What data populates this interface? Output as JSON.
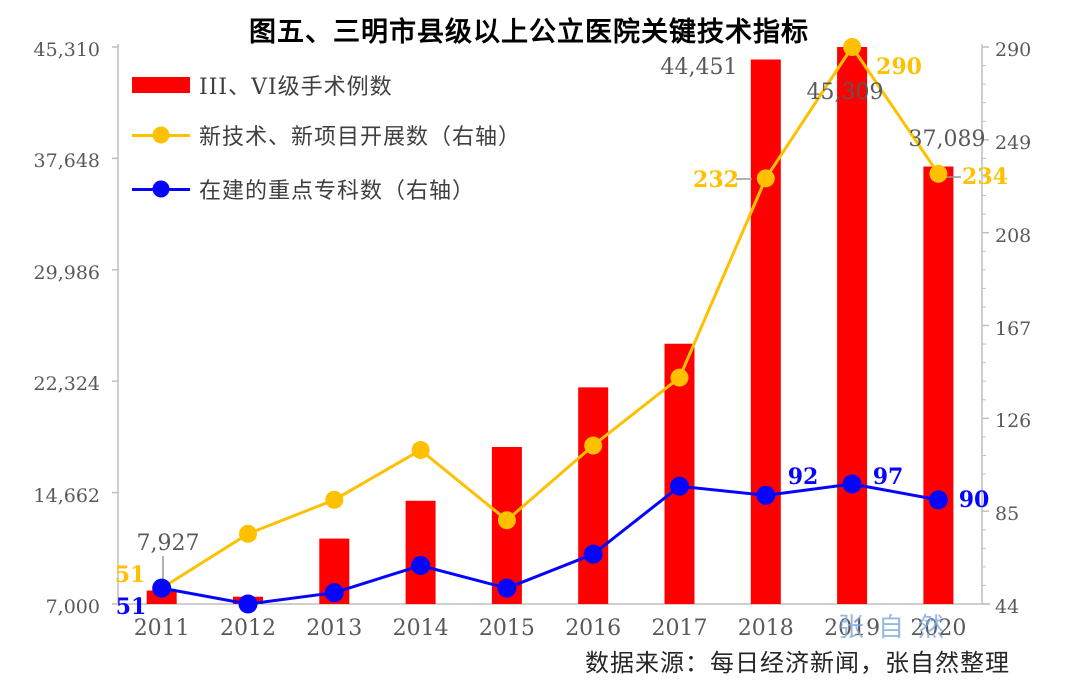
{
  "title": "图五、三明市县级以上公立医院关键技术指标",
  "source": "数据来源：每日经济新闻，张自然整理",
  "watermark": "张自然",
  "colors": {
    "bar_red": "#ff0000",
    "line_gold": "#ffc000",
    "line_blue": "#0505ff",
    "axis_gray": "#bfbfbf",
    "label_gray": "#595959",
    "leader_gray": "#999999",
    "watermark_blue": "#7fa8dc"
  },
  "legend": [
    {
      "label": "III、VI级手术例数",
      "marker": "bar",
      "color": "#ff0000"
    },
    {
      "label": "新技术、新项目开展数（右轴）",
      "marker": "line-dot",
      "color": "#ffc000"
    },
    {
      "label": "在建的重点专科数（右轴）",
      "marker": "line-dot",
      "color": "#0505ff"
    }
  ],
  "chart_data": {
    "type": "combo",
    "categories": [
      "2011",
      "2012",
      "2013",
      "2014",
      "2015",
      "2016",
      "2017",
      "2018",
      "2019",
      "2020"
    ],
    "series": [
      {
        "name": "III、VI级手术例数",
        "key": "surgeries",
        "type": "bar",
        "axis": "left",
        "color": "#ff0000",
        "values": [
          7927,
          7500,
          11500,
          14100,
          17800,
          21900,
          24900,
          44451,
          45309,
          37089
        ]
      },
      {
        "name": "新技术、新项目开展数（右轴）",
        "key": "new_tech",
        "type": "line",
        "axis": "right",
        "color": "#ffc000",
        "values": [
          51,
          75,
          90,
          112,
          81,
          114,
          144,
          232,
          290,
          234
        ]
      },
      {
        "name": "在建的重点专科数（右轴）",
        "key": "key_specialties",
        "type": "line",
        "axis": "right",
        "color": "#0505ff",
        "values": [
          51,
          44,
          49,
          61,
          51,
          66,
          96,
          92,
          97,
          90
        ]
      }
    ],
    "left_axis": {
      "min": 7000,
      "max": 45310,
      "tick_values": [
        7000,
        14662,
        22324,
        29986,
        37648,
        45310
      ],
      "tick_labels": [
        "7,000",
        "14,662",
        "22,324",
        "29,986",
        "37,648",
        "45,310"
      ]
    },
    "right_axis": {
      "min": 44,
      "max": 290,
      "tick_values": [
        44,
        85,
        126,
        167,
        208,
        249,
        290
      ],
      "tick_labels": [
        "44",
        "85",
        "126",
        "167",
        "208",
        "249",
        "290"
      ]
    },
    "grid": false,
    "legend_position": "top-left-inside",
    "annotations": [
      {
        "id": "bar-2011",
        "text": "7,927",
        "series": "surgeries"
      },
      {
        "id": "bar-2018",
        "text": "44,451",
        "series": "surgeries"
      },
      {
        "id": "bar-2019",
        "text": "45,309",
        "series": "surgeries"
      },
      {
        "id": "bar-2020",
        "text": "37,089",
        "series": "surgeries"
      },
      {
        "id": "newtech-2011",
        "text": "51",
        "series": "new_tech"
      },
      {
        "id": "newtech-2018",
        "text": "232",
        "series": "new_tech"
      },
      {
        "id": "newtech-2019",
        "text": "290",
        "series": "new_tech"
      },
      {
        "id": "newtech-2020",
        "text": "234",
        "series": "new_tech"
      },
      {
        "id": "keyspec-2011",
        "text": "51",
        "series": "key_specialties"
      },
      {
        "id": "keyspec-2018",
        "text": "92",
        "series": "key_specialties"
      },
      {
        "id": "keyspec-2019",
        "text": "97",
        "series": "key_specialties"
      },
      {
        "id": "keyspec-2020",
        "text": "90",
        "series": "key_specialties"
      }
    ]
  }
}
